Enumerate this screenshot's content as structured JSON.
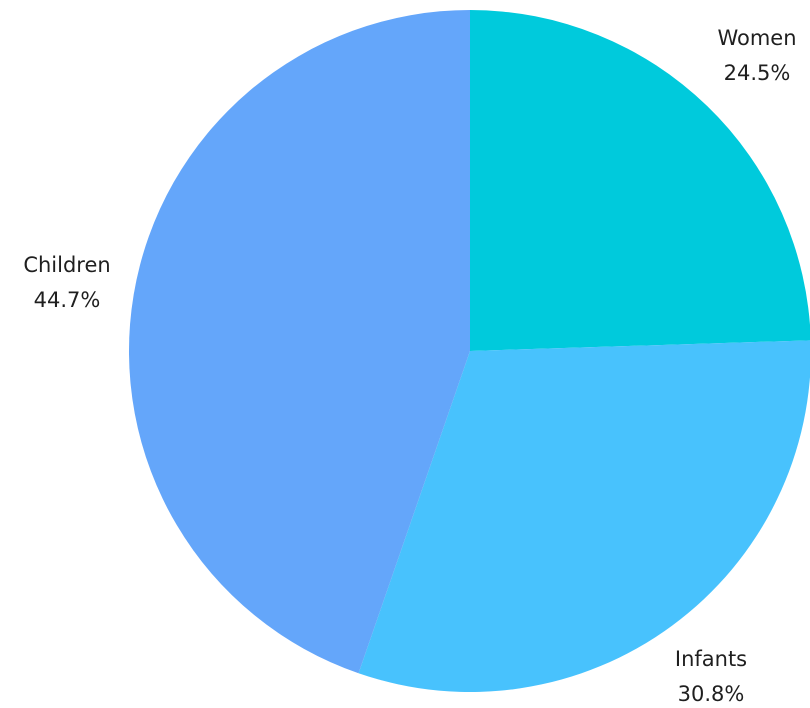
{
  "chart_data": {
    "type": "pie",
    "title": "",
    "start_angle": "12 o'clock",
    "direction": "clockwise",
    "legend": "none",
    "slices": [
      {
        "label": "Women",
        "value": 24.5,
        "value_label": "24.5%",
        "color": "#00CADC"
      },
      {
        "label": "Infants",
        "value": 30.8,
        "value_label": "30.8%",
        "color": "#48C2FD"
      },
      {
        "label": "Children",
        "value": 44.7,
        "value_label": "44.7%",
        "color": "#64A6FA"
      }
    ]
  }
}
